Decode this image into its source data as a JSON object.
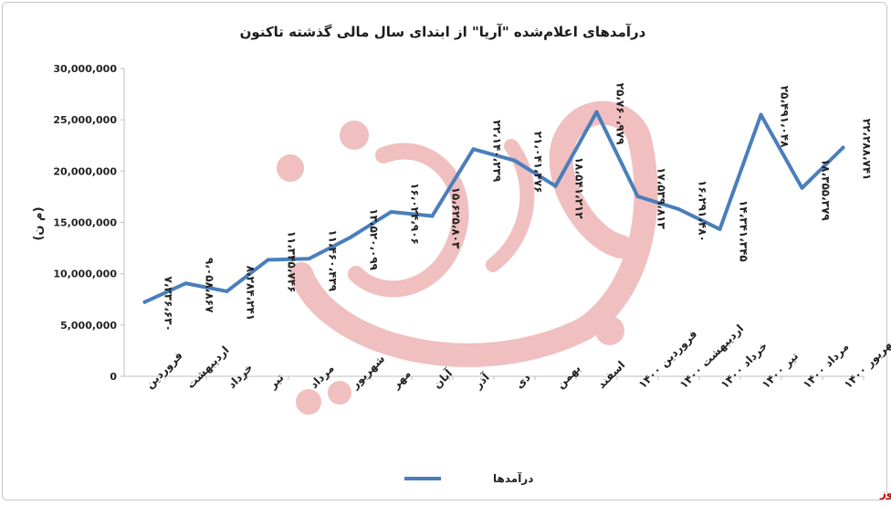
{
  "chart_data": {
    "type": "line",
    "title": "درآمدهای اعلام‌شده \"آریا\" از ابتدای سال مالی گذشته تاکنون",
    "ylabel": "(م ن)",
    "xlabel": "",
    "ylim": [
      0,
      30000000
    ],
    "y_ticks": [
      {
        "value": 0,
        "label": "0"
      },
      {
        "value": 5000000,
        "label": "5,000,000"
      },
      {
        "value": 10000000,
        "label": "10,000,000"
      },
      {
        "value": 15000000,
        "label": "15,000,000"
      },
      {
        "value": 20000000,
        "label": "20,000,000"
      },
      {
        "value": 25000000,
        "label": "25,000,000"
      },
      {
        "value": 30000000,
        "label": "30,000,000"
      }
    ],
    "categories": [
      "فروردین",
      "اردیبهشت",
      "خرداد",
      "تیر",
      "مرداد",
      "شهریور",
      "مهر",
      "آبان",
      "آذر",
      "دی",
      "بهمن",
      "اسفند",
      "فروردین ۱۴۰۰",
      "اردیبهشت ۱۴۰۰",
      "خرداد ۱۴۰۰",
      "تیر ۱۴۰۰",
      "مرداد ۱۴۰۰",
      "شهریور ۱۴۰۰"
    ],
    "series": [
      {
        "name": "درآمدها",
        "color": "#4a7ebb",
        "values": [
          7236630,
          9058867,
          8284241,
          11345746,
          11460439,
          13520099,
          16024906,
          15625803,
          22140239,
          21041476,
          18541212,
          25760979,
          17539813,
          16291480,
          14341345,
          25491048,
          18355379,
          22288741
        ],
        "data_labels": [
          "۷،۲۳۶،۶۳۰",
          "۹،۰۵۸،۸۶۷",
          "۸،۲۸۴،۲۴۱",
          "۱۱،۳۴۵،۷۴۶",
          "۱۱،۴۶۰،۴۳۹",
          "۱۳،۵۲۰،۰۹۹",
          "۱۶،۰۲۴،۹۰۶",
          "۱۵،۶۲۵،۸۰۳",
          "۲۲،۱۴۰،۲۳۹",
          "۲۱،۰۴۱،۴۷۶",
          "۱۸،۵۴۱،۲۱۲",
          "۲۵،۷۶۰،۹۷۹",
          "۱۷،۵۳۹،۸۱۳",
          "۱۶،۲۹۱،۴۸۰",
          "۱۴،۳۴۱،۳۴۵",
          "۲۵،۴۹۱،۰۴۸",
          "۱۸،۳۵۵،۳۷۹",
          "۲۲،۲۸۸،۷۴۱"
        ]
      }
    ],
    "grid": false,
    "legend": "bottom"
  },
  "watermark": "بورس نیوز",
  "source": "بورس نیوز"
}
